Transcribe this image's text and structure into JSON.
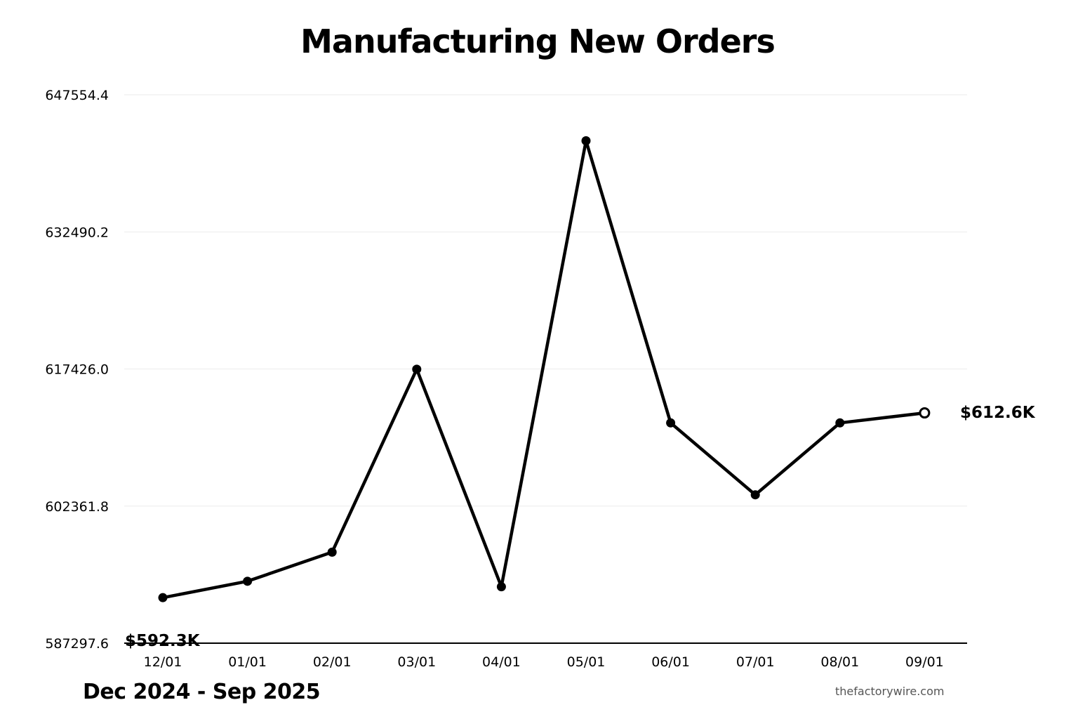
{
  "chart_data": {
    "type": "line",
    "title": "Manufacturing New Orders",
    "subtitle": "Dec 2024 - Sep 2025",
    "source": "thefactorywire.com",
    "xlabel": "",
    "ylabel": "",
    "x": [
      "12/01",
      "01/01",
      "02/01",
      "03/01",
      "04/01",
      "05/01",
      "06/01",
      "07/01",
      "08/01",
      "09/01"
    ],
    "series": [
      {
        "values": [
          592300,
          594100,
          597300,
          617400,
          593500,
          642500,
          611500,
          603600,
          611500,
          612600
        ]
      }
    ],
    "ylim": [
      587297.6,
      647554.4
    ],
    "yticks": [
      "587297.6",
      "602361.8",
      "617426.0",
      "632490.2",
      "647554.4"
    ],
    "ytick_values": [
      587297.6,
      602361.8,
      617426.0,
      632490.2,
      647554.4
    ],
    "start_label": "$592.3K",
    "end_label": "$612.6K",
    "grid": true,
    "legend": "none",
    "colors": {
      "line": "#000000",
      "grid": "#ebebeb",
      "axis": "#000000",
      "last_point_fill": "#ffffff"
    }
  }
}
